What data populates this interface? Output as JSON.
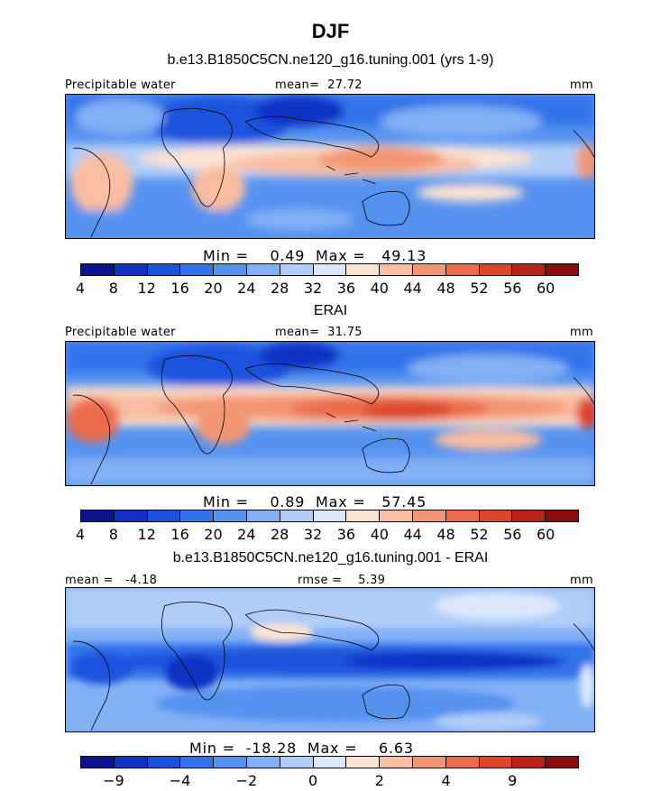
{
  "figure": {
    "title": "DJF"
  },
  "chart_data": [
    {
      "type": "heatmap",
      "title": "b.e13.B1850C5CN.ne120_g16.tuning.001 (yrs 1-9)",
      "variable": "Precipitable water",
      "units": "mm",
      "mean_label": "mean=",
      "mean_value": "27.72",
      "min_label": "Min =",
      "min_value": "0.49",
      "max_label": "Max =",
      "max_value": "49.13",
      "colorbar_ticks": [
        "4",
        "8",
        "12",
        "16",
        "20",
        "24",
        "28",
        "32",
        "36",
        "40",
        "44",
        "48",
        "52",
        "56",
        "60"
      ],
      "colorbar_colors": [
        "#08138c",
        "#0f32c4",
        "#1a52de",
        "#3173ea",
        "#5592f0",
        "#82b0f5",
        "#b0cdf8",
        "#dbe8fb",
        "#fde3d3",
        "#f9bda1",
        "#f39673",
        "#eb6c4c",
        "#dd452b",
        "#b82418",
        "#8a0d0a"
      ]
    },
    {
      "type": "heatmap",
      "title": "ERAI",
      "variable": "Precipitable water",
      "units": "mm",
      "mean_label": "mean=",
      "mean_value": "31.75",
      "min_label": "Min =",
      "min_value": "0.89",
      "max_label": "Max =",
      "max_value": "57.45",
      "colorbar_ticks": [
        "4",
        "8",
        "12",
        "16",
        "20",
        "24",
        "28",
        "32",
        "36",
        "40",
        "44",
        "48",
        "52",
        "56",
        "60"
      ],
      "colorbar_colors": [
        "#08138c",
        "#0f32c4",
        "#1a52de",
        "#3173ea",
        "#5592f0",
        "#82b0f5",
        "#b0cdf8",
        "#dbe8fb",
        "#fde3d3",
        "#f9bda1",
        "#f39673",
        "#eb6c4c",
        "#dd452b",
        "#b82418",
        "#8a0d0a"
      ]
    },
    {
      "type": "heatmap",
      "title": "b.e13.B1850C5CN.ne120_g16.tuning.001 - ERAI",
      "units": "mm",
      "mean_label": "mean =",
      "mean_value": "-4.18",
      "rmse_label": "rmse =",
      "rmse_value": "5.39",
      "min_label": "Min =",
      "min_value": "-18.28",
      "max_label": "Max =",
      "max_value": "6.63",
      "colorbar_ticks": [
        "−9",
        "−4",
        "−2",
        "0",
        "2",
        "4",
        "9"
      ],
      "colorbar_colors": [
        "#08138c",
        "#0f32c4",
        "#1a52de",
        "#3173ea",
        "#5592f0",
        "#82b0f5",
        "#b0cdf8",
        "#dbe8fb",
        "#fde3d3",
        "#f9bda1",
        "#f39673",
        "#eb6c4c",
        "#dd452b",
        "#b82418",
        "#8a0d0a"
      ]
    }
  ]
}
